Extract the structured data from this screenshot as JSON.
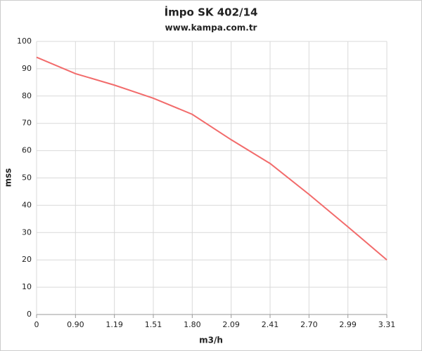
{
  "chart_data": {
    "type": "line",
    "title": "İmpo SK 402/14",
    "subtitle": "www.kampa.com.tr",
    "x_label": "m3/h",
    "y_label": "mss",
    "categories": [
      "0",
      "0.90",
      "1.19",
      "1.51",
      "1.80",
      "2.09",
      "2.41",
      "2.70",
      "2.99",
      "3.31"
    ],
    "series": [
      {
        "color": "#f26b6b",
        "values": [
          94.2,
          88.2,
          84,
          79.2,
          73.3,
          64,
          55.3,
          44,
          32.1,
          20
        ]
      }
    ],
    "ylim": [
      0,
      100
    ],
    "yticks": [
      0,
      10,
      20,
      30,
      40,
      50,
      60,
      70,
      80,
      90,
      100
    ],
    "grid": true
  }
}
